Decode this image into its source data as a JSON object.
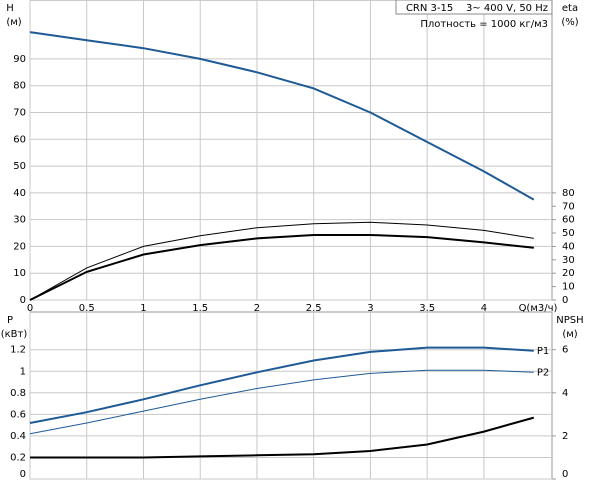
{
  "chart_data": [
    {
      "type": "line",
      "title": "CRN 3-15    3~ 400 V, 50 Hz",
      "subtitle": "Плотность = 1000 кг/м3",
      "y_label": "H",
      "y_unit": "(м)",
      "y2_label": "eta",
      "y2_unit": "(%)",
      "x_label": "Q(м3/ч)",
      "xlim": [
        0,
        4.6
      ],
      "xticks": [
        0,
        0.5,
        1,
        1.5,
        2,
        2.5,
        3,
        3.5,
        4
      ],
      "ylim": [
        0,
        112
      ],
      "yticks": [
        0,
        10,
        20,
        30,
        40,
        50,
        60,
        70,
        80,
        90
      ],
      "y2lim": [
        0,
        224
      ],
      "y2ticks": [
        0,
        10,
        20,
        30,
        40,
        50,
        60,
        70,
        80
      ],
      "grid": true,
      "x": [
        0,
        0.5,
        1,
        1.5,
        2,
        2.5,
        3,
        3.5,
        4,
        4.44
      ],
      "series": [
        {
          "color": "#1f5a96",
          "width": 2,
          "values": [
            100,
            97,
            94,
            90,
            85,
            79,
            70,
            59,
            48,
            37.5
          ]
        },
        {
          "color": "#000000",
          "width": 1,
          "axis": "y2",
          "values": [
            0,
            24,
            40,
            48,
            54,
            57,
            58,
            56,
            52,
            46
          ]
        },
        {
          "color": "#000000",
          "width": 2,
          "axis": "y2",
          "values": [
            0,
            21,
            34,
            41,
            46,
            48.5,
            48.5,
            47,
            43,
            39
          ]
        }
      ]
    },
    {
      "type": "line",
      "y_label": "P",
      "y_unit": "(кВт)",
      "y2_label": "NPSH",
      "y2_unit": "(м)",
      "xlim": [
        0,
        4.6
      ],
      "xticks": [
        0,
        0.5,
        1,
        1.5,
        2,
        2.5,
        3,
        3.5,
        4
      ],
      "ylim": [
        0,
        1.55
      ],
      "yticks": [
        0,
        0.2,
        0.4,
        0.6,
        0.8,
        1,
        1.2
      ],
      "y2lim": [
        0,
        7.75
      ],
      "y2ticks": [
        0,
        2,
        4,
        6
      ],
      "grid": true,
      "x": [
        0,
        0.5,
        1,
        1.5,
        2,
        2.5,
        3,
        3.5,
        4,
        4.44
      ],
      "series": [
        {
          "name": "P1",
          "color": "#1f5a96",
          "width": 2,
          "values": [
            0.52,
            0.62,
            0.74,
            0.87,
            0.99,
            1.1,
            1.18,
            1.22,
            1.22,
            1.19
          ]
        },
        {
          "name": "P2",
          "color": "#1f5a96",
          "width": 1,
          "values": [
            0.42,
            0.52,
            0.63,
            0.74,
            0.84,
            0.92,
            0.98,
            1.01,
            1.01,
            0.99
          ]
        },
        {
          "color": "#000000",
          "width": 2,
          "axis": "y2",
          "values": [
            1.0,
            1.0,
            1.0,
            1.05,
            1.1,
            1.15,
            1.3,
            1.6,
            2.2,
            2.85
          ]
        }
      ]
    }
  ]
}
